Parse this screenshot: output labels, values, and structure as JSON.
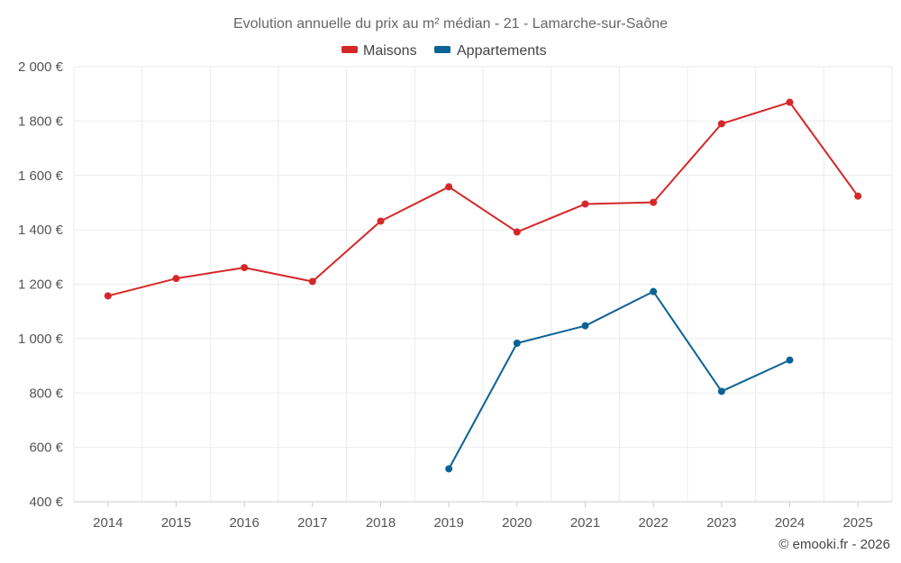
{
  "chart_data": {
    "type": "line",
    "title": "Evolution annuelle du prix au m² médian - 21 - Lamarche-sur-Saône",
    "categories": [
      "2014",
      "2015",
      "2016",
      "2017",
      "2018",
      "2019",
      "2020",
      "2021",
      "2022",
      "2023",
      "2024",
      "2025"
    ],
    "series": [
      {
        "name": "Maisons",
        "color": "#d62728",
        "values": [
          1157,
          1221,
          1261,
          1210,
          1432,
          1558,
          1392,
          1495,
          1501,
          1790,
          1869,
          1524
        ]
      },
      {
        "name": "Appartements",
        "color": "#0b6394",
        "values": [
          null,
          null,
          null,
          null,
          null,
          521,
          983,
          1047,
          1173,
          806,
          921,
          null
        ]
      }
    ],
    "yticks": [
      "400 €",
      "600 €",
      "800 €",
      "1 000 €",
      "1 200 €",
      "1 400 €",
      "1 600 €",
      "1 800 €",
      "2 000 €"
    ],
    "ylim": [
      400,
      2000
    ],
    "xlabel": "",
    "ylabel": "",
    "grid": true,
    "legend_position": "top-center"
  },
  "credit": "© emooki.fr - 2026"
}
